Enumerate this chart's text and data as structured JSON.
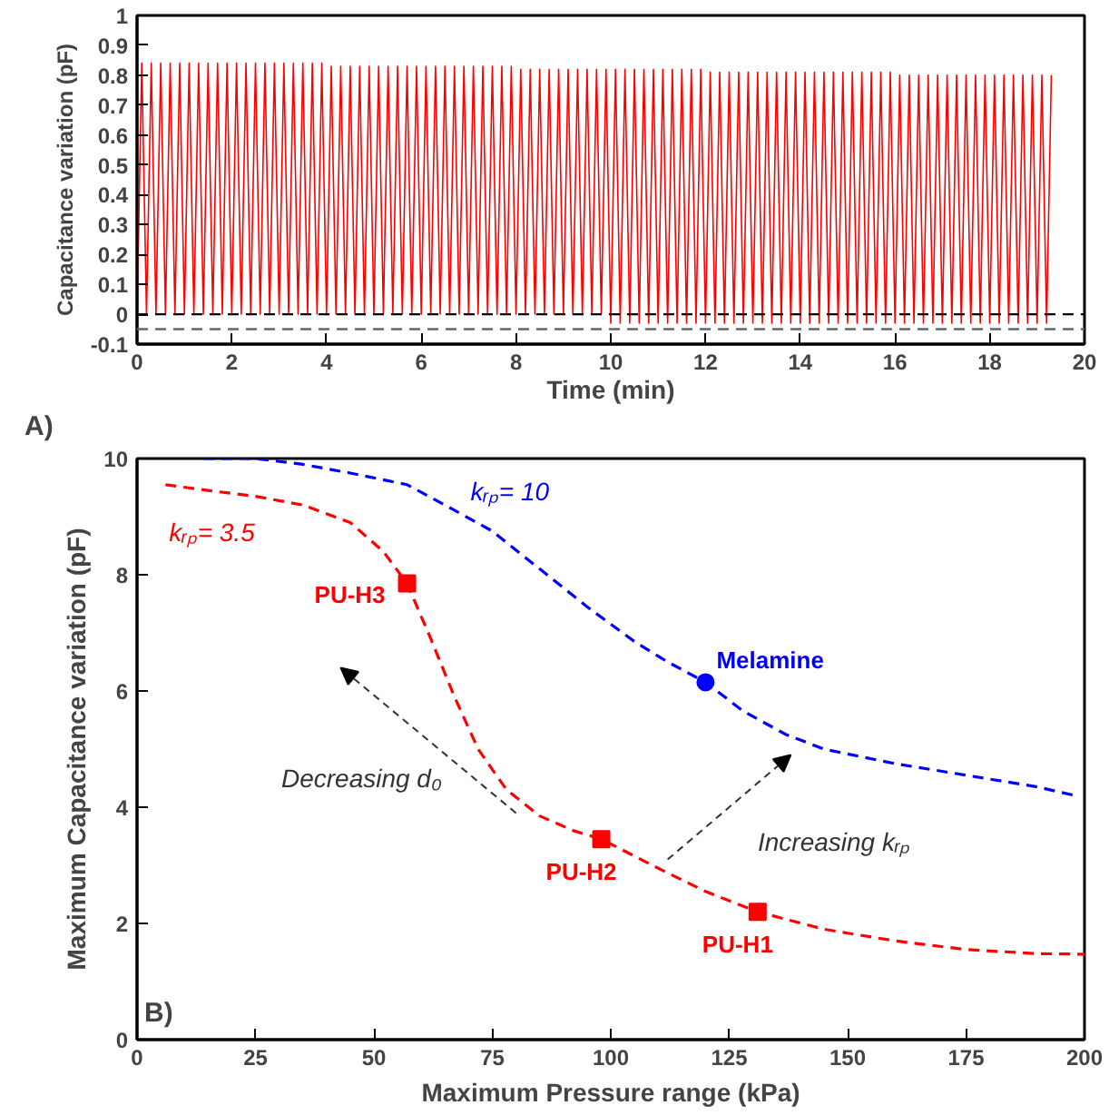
{
  "chart_data": [
    {
      "type": "line",
      "ylabel": "Capacitance variation (pF)",
      "xlabel": "Time (min)",
      "annotations": [
        "A)"
      ],
      "xlim": [
        0,
        20
      ],
      "xticks": [
        0,
        2,
        4,
        6,
        8,
        10,
        12,
        14,
        16,
        18,
        20
      ],
      "ylim": [
        -0.1,
        1
      ],
      "yticks": [
        -0.1,
        0,
        0.1,
        0.2,
        0.3,
        0.4,
        0.5,
        0.6,
        0.7,
        0.8,
        0.9,
        1
      ],
      "grid": false,
      "ref_lines": [
        {
          "axis": "y",
          "value": 0,
          "color": "#000000",
          "line_style": "dashed"
        },
        {
          "axis": "y",
          "value": -0.05,
          "color": "#666666",
          "line_style": "dashed"
        }
      ],
      "series": [
        {
          "color": "#ff0000",
          "x": [
            0.0,
            0.1,
            0.2,
            0.3,
            0.4,
            0.5,
            0.6,
            0.7,
            0.8,
            0.9,
            1.0,
            1.1,
            1.2,
            1.3,
            1.4,
            1.5,
            1.6,
            1.7,
            1.8,
            1.9,
            2.0,
            2.1,
            2.2,
            2.3,
            2.4,
            2.5,
            2.6,
            2.7,
            2.8,
            2.9,
            3.0,
            3.1,
            3.2,
            3.3,
            3.4,
            3.5,
            3.6,
            3.7,
            3.8,
            3.9,
            4.0,
            4.1,
            4.2,
            4.3,
            4.4,
            4.5,
            4.6,
            4.7,
            4.8,
            4.9,
            5.0,
            5.1,
            5.2,
            5.3,
            5.4,
            5.5,
            5.6,
            5.7,
            5.8,
            5.9,
            6.0,
            6.1,
            6.2,
            6.3,
            6.4,
            6.5,
            6.6,
            6.7,
            6.8,
            6.9,
            7.0,
            7.1,
            7.2,
            7.3,
            7.4,
            7.5,
            7.6,
            7.7,
            7.8,
            7.9,
            8.0,
            8.1,
            8.2,
            8.3,
            8.4,
            8.5,
            8.6,
            8.7,
            8.8,
            8.9,
            9.0,
            9.1,
            9.2,
            9.3,
            9.4,
            9.5,
            9.6,
            9.7,
            9.8,
            9.9,
            10.0,
            10.1,
            10.2,
            10.3,
            10.4,
            10.5,
            10.6,
            10.7,
            10.8,
            10.9,
            11.0,
            11.1,
            11.2,
            11.3,
            11.4,
            11.5,
            11.6,
            11.7,
            11.8,
            11.9,
            12.0,
            12.1,
            12.2,
            12.3,
            12.4,
            12.5,
            12.6,
            12.7,
            12.8,
            12.9,
            13.0,
            13.1,
            13.2,
            13.3,
            13.4,
            13.5,
            13.6,
            13.7,
            13.8,
            13.9,
            14.0,
            14.1,
            14.2,
            14.3,
            14.4,
            14.5,
            14.6,
            14.7,
            14.8,
            14.9,
            15.0,
            15.1,
            15.2,
            15.3,
            15.4,
            15.5,
            15.6,
            15.7,
            15.8,
            15.9,
            16.0,
            16.1,
            16.2,
            16.3,
            16.4,
            16.5,
            16.6,
            16.7,
            16.8,
            16.9,
            17.0,
            17.1,
            17.2,
            17.3,
            17.4,
            17.5,
            17.6,
            17.7,
            17.8,
            17.9,
            18.0,
            18.1,
            18.2,
            18.3,
            18.4,
            18.5,
            18.6,
            18.7,
            18.8,
            18.9,
            19.0,
            19.1,
            19.2,
            19.3
          ],
          "values": [
            0.0,
            0.84,
            0.0,
            0.84,
            0.0,
            0.84,
            0.0,
            0.84,
            0.0,
            0.84,
            0.0,
            0.84,
            0.0,
            0.84,
            0.0,
            0.84,
            0.0,
            0.84,
            0.0,
            0.84,
            0.0,
            0.84,
            0.0,
            0.84,
            0.0,
            0.84,
            0.0,
            0.84,
            0.0,
            0.84,
            0.0,
            0.84,
            0.0,
            0.84,
            0.0,
            0.84,
            0.0,
            0.84,
            0.0,
            0.84,
            0.0,
            0.83,
            0.0,
            0.83,
            0.0,
            0.83,
            0.0,
            0.83,
            0.0,
            0.83,
            0.0,
            0.83,
            0.0,
            0.83,
            0.0,
            0.83,
            0.0,
            0.83,
            0.0,
            0.83,
            0.0,
            0.83,
            0.0,
            0.83,
            0.0,
            0.83,
            0.0,
            0.83,
            0.0,
            0.83,
            0.0,
            0.83,
            0.0,
            0.83,
            0.0,
            0.83,
            0.0,
            0.83,
            0.0,
            0.83,
            0.0,
            0.82,
            0.0,
            0.82,
            0.0,
            0.82,
            0.0,
            0.82,
            0.0,
            0.82,
            0.0,
            0.82,
            0.0,
            0.82,
            0.0,
            0.82,
            0.0,
            0.82,
            0.0,
            0.82,
            -0.03,
            0.82,
            -0.03,
            0.82,
            -0.03,
            0.82,
            -0.03,
            0.82,
            -0.03,
            0.82,
            -0.03,
            0.82,
            -0.03,
            0.82,
            -0.03,
            0.82,
            -0.03,
            0.82,
            -0.03,
            0.82,
            -0.03,
            0.81,
            -0.03,
            0.81,
            -0.03,
            0.81,
            -0.03,
            0.81,
            -0.03,
            0.81,
            -0.03,
            0.81,
            -0.03,
            0.81,
            -0.03,
            0.81,
            -0.03,
            0.81,
            -0.03,
            0.81,
            -0.03,
            0.81,
            -0.03,
            0.81,
            -0.03,
            0.81,
            -0.03,
            0.81,
            -0.03,
            0.81,
            -0.03,
            0.81,
            -0.03,
            0.81,
            -0.03,
            0.81,
            -0.03,
            0.81,
            -0.03,
            0.81,
            -0.03,
            0.8,
            -0.03,
            0.8,
            -0.03,
            0.8,
            -0.03,
            0.8,
            -0.03,
            0.8,
            -0.03,
            0.8,
            -0.03,
            0.8,
            -0.03,
            0.8,
            -0.03,
            0.8,
            -0.03,
            0.8,
            -0.03,
            0.8,
            -0.03,
            0.8,
            -0.03,
            0.8,
            -0.03,
            0.8,
            -0.03,
            0.8,
            -0.03,
            0.8,
            -0.03,
            0.8
          ]
        }
      ]
    },
    {
      "type": "line",
      "ylabel": "Maximum Capacitance variation (pF)",
      "xlabel": "Maximum Pressure range (kPa)",
      "annotations": [
        "B)",
        "Decreasing d₀",
        "Increasing kᵣₚ",
        {
          "text": "PU-H3",
          "x": 57,
          "y": 7.85
        },
        {
          "text": "PU-H2",
          "x": 98,
          "y": 3.45
        },
        {
          "text": "PU-H1",
          "x": 131,
          "y": 2.2
        },
        {
          "text": "Melamine",
          "x": 120,
          "y": 6.15
        }
      ],
      "xlim": [
        0,
        200
      ],
      "xticks": [
        0,
        25,
        50,
        75,
        100,
        125,
        150,
        175,
        200
      ],
      "ylim": [
        0,
        10
      ],
      "yticks": [
        0,
        2,
        4,
        6,
        8,
        10
      ],
      "grid": false,
      "line_style": "dashed",
      "series": [
        {
          "name": "kᵣₚ= 3.5",
          "color": "#ff0000",
          "x": [
            6,
            15,
            25,
            35,
            45,
            52,
            57,
            62,
            67,
            72,
            78,
            85,
            92,
            98,
            110,
            120,
            131,
            145,
            160,
            175,
            190,
            200
          ],
          "values": [
            9.55,
            9.45,
            9.35,
            9.2,
            8.9,
            8.4,
            7.85,
            6.9,
            5.9,
            5.0,
            4.3,
            3.85,
            3.6,
            3.45,
            2.95,
            2.55,
            2.2,
            1.9,
            1.7,
            1.55,
            1.48,
            1.47
          ]
        },
        {
          "name": "kᵣₚ= 10",
          "color": "#0000ff",
          "x": [
            14,
            25,
            35,
            45,
            57,
            65,
            75,
            85,
            95,
            105,
            112,
            120,
            128,
            137,
            145,
            160,
            175,
            190,
            198
          ],
          "values": [
            10,
            10,
            9.9,
            9.75,
            9.55,
            9.2,
            8.75,
            8.1,
            7.45,
            6.85,
            6.5,
            6.15,
            5.65,
            5.25,
            5.0,
            4.75,
            4.55,
            4.35,
            4.2
          ]
        },
        {
          "type": "scatter",
          "marker": "square",
          "color": "#ff0000",
          "x": [
            57,
            98,
            131
          ],
          "values": [
            7.85,
            3.45,
            2.2
          ]
        },
        {
          "type": "scatter",
          "marker": "circle",
          "color": "#0000ff",
          "x": [
            120
          ],
          "values": [
            6.15
          ]
        }
      ]
    }
  ]
}
